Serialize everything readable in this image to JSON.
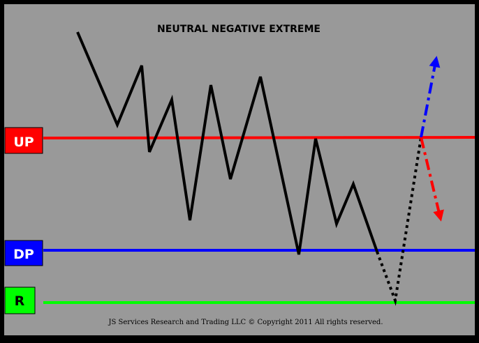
{
  "title": "NEUTRAL NEGATIVE EXTREME",
  "footer": "JS Services Research and Trading LLC © Copyright 2011 All rights reserved.",
  "levels": [
    {
      "key": "up",
      "label": "UP",
      "color": "#ff0000",
      "label_bg": "#ff0000",
      "label_color": "#ffffff"
    },
    {
      "key": "dp",
      "label": "DP",
      "color": "#0000ff",
      "label_bg": "#0000ff",
      "label_color": "#ffffff"
    },
    {
      "key": "r",
      "label": "R",
      "color": "#00ff00",
      "label_bg": "#00ff00",
      "label_color": "#000000"
    }
  ],
  "colors": {
    "background": "#999999",
    "frame": "#000000",
    "price_path": "#000000",
    "breakout_arrow": "#0000ff",
    "reversal_arrow": "#ff0000"
  },
  "icons": {
    "breakout": "arrow-up-icon",
    "reversal": "arrow-down-icon"
  }
}
